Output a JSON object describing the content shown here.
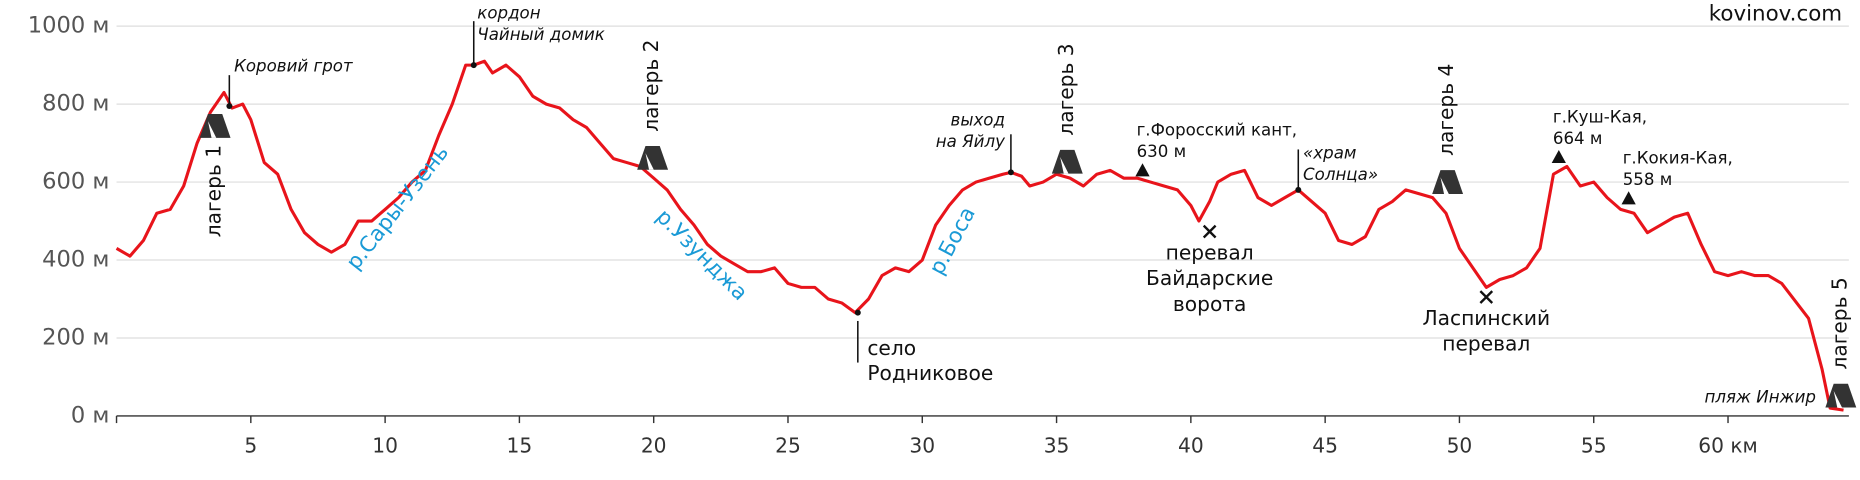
{
  "chart_data": {
    "type": "line",
    "source": "kovinov.com",
    "color": "#e8141b",
    "grid": true,
    "xlim": [
      0,
      64.5
    ],
    "ylim": [
      0,
      1000
    ],
    "xticks": [
      5,
      10,
      15,
      20,
      25,
      30,
      35,
      40,
      45,
      50,
      55,
      {
        "value": 60,
        "label": "60 км"
      }
    ],
    "yticks": [
      {
        "value": 0,
        "label": "0 м"
      },
      {
        "value": 200,
        "label": "200 м"
      },
      {
        "value": 400,
        "label": "400 м"
      },
      {
        "value": 600,
        "label": "600 м"
      },
      {
        "value": 800,
        "label": "800 м"
      },
      {
        "value": 1000,
        "label": "1000 м"
      }
    ],
    "x": [
      0,
      0.5,
      1,
      1.5,
      2,
      2.5,
      3,
      3.5,
      4,
      4.3,
      4.7,
      5,
      5.5,
      6,
      6.5,
      7,
      7.5,
      8,
      8.5,
      9,
      9.5,
      10,
      10.5,
      11,
      11.5,
      12,
      12.5,
      13,
      13.3,
      13.7,
      14,
      14.5,
      15,
      15.5,
      16,
      16.5,
      17,
      17.5,
      18,
      18.5,
      19,
      19.5,
      20,
      20.5,
      21,
      21.5,
      22,
      22.5,
      23,
      23.5,
      24,
      24.5,
      25,
      25.5,
      26,
      26.5,
      27,
      27.5,
      28,
      28.5,
      29,
      29.5,
      30,
      30.5,
      31,
      31.5,
      32,
      32.5,
      33,
      33.3,
      33.7,
      34,
      34.5,
      35,
      35.5,
      36,
      36.5,
      37,
      37.5,
      38,
      38.5,
      39,
      39.5,
      40,
      40.3,
      40.7,
      41,
      41.5,
      42,
      42.5,
      43,
      43.5,
      44,
      44.5,
      45,
      45.5,
      46,
      46.5,
      47,
      47.5,
      48,
      48.5,
      49,
      49.5,
      50,
      50.5,
      51,
      51.5,
      52,
      52.5,
      53,
      53.5,
      54,
      54.5,
      55,
      55.5,
      56,
      56.5,
      57,
      57.5,
      58,
      58.5,
      59,
      59.5,
      60,
      60.5,
      61,
      61.5,
      62,
      63,
      63.5,
      63.8,
      64.3
    ],
    "values": [
      430,
      410,
      450,
      520,
      530,
      590,
      700,
      780,
      830,
      790,
      800,
      760,
      650,
      620,
      530,
      470,
      440,
      420,
      440,
      500,
      500,
      530,
      560,
      600,
      630,
      720,
      800,
      900,
      900,
      910,
      880,
      900,
      870,
      820,
      800,
      790,
      760,
      740,
      700,
      660,
      650,
      640,
      610,
      580,
      530,
      490,
      440,
      410,
      390,
      370,
      370,
      380,
      340,
      330,
      330,
      300,
      290,
      265,
      300,
      360,
      380,
      370,
      400,
      490,
      540,
      580,
      600,
      610,
      620,
      625,
      615,
      590,
      600,
      620,
      610,
      590,
      620,
      630,
      610,
      610,
      600,
      590,
      580,
      540,
      500,
      550,
      600,
      620,
      630,
      560,
      540,
      560,
      580,
      550,
      520,
      450,
      440,
      460,
      530,
      550,
      580,
      570,
      560,
      520,
      430,
      380,
      330,
      350,
      360,
      380,
      430,
      620,
      640,
      590,
      600,
      560,
      530,
      520,
      470,
      490,
      510,
      520,
      440,
      370,
      360,
      370,
      360,
      360,
      340,
      250,
      120,
      20,
      15
    ],
    "points": [
      {
        "lines": [
          "Коровий грот"
        ],
        "x": 4.2,
        "y": 795
      },
      {
        "lines": [
          "кордон",
          "Чайный домик"
        ],
        "x": 13.3,
        "y": 900
      },
      {
        "lines": [
          "село",
          "Родниковое"
        ],
        "x": 27.6,
        "y": 265
      },
      {
        "lines": [
          "выход",
          "на Яйлу"
        ],
        "x": 33.3,
        "y": 625
      },
      {
        "lines": [
          "«храм",
          "Солнца»"
        ],
        "x": 44,
        "y": 580
      }
    ],
    "summits": [
      {
        "lines": [
          "г.Форосский кант,",
          "630 м"
        ],
        "x": 38.2,
        "y": 630
      },
      {
        "lines": [
          "г.Куш-Кая,",
          "664 м"
        ],
        "x": 53.7,
        "y": 664
      },
      {
        "lines": [
          "г.Кокия-Кая,",
          "558 м"
        ],
        "x": 56.3,
        "y": 558
      }
    ],
    "passes": [
      {
        "lines": [
          "перевал",
          "Байдарские",
          "ворота"
        ],
        "x": 40.7,
        "y": 473
      },
      {
        "lines": [
          "Ласпинский",
          "перевал"
        ],
        "x": 51.0,
        "y": 305
      }
    ],
    "camps": [
      {
        "label": "лагерь 1",
        "x": 3.67,
        "y": 744
      },
      {
        "label": "лагерь 2",
        "x": 19.96,
        "y": 662
      },
      {
        "label": "лагерь 3",
        "x": 35.4,
        "y": 652
      },
      {
        "label": "лагерь 4",
        "x": 49.56,
        "y": 600
      },
      {
        "label": "лагерь 5",
        "x": 64.2,
        "y": 52
      }
    ],
    "rivers": [
      "р.Сары-Узень",
      "р.Узунджа",
      "р.Боса"
    ],
    "beach": "пляж Инжир"
  }
}
